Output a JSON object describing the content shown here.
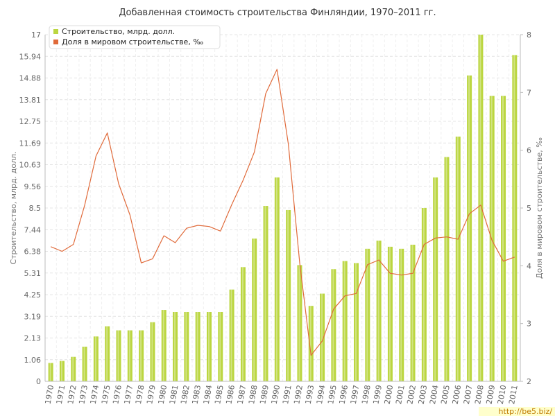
{
  "chart_data": {
    "type": "bar+line",
    "title": "Добавленная стоимость строительства Финляндии, 1970–2011 гг.",
    "ylabel_left": "Строительство, млрд. долл.",
    "ylabel_right": "Доля в мировом строительстве, ‰",
    "categories": [
      "1970",
      "1971",
      "1972",
      "1973",
      "1974",
      "1975",
      "1976",
      "1977",
      "1978",
      "1979",
      "1980",
      "1981",
      "1982",
      "1983",
      "1984",
      "1985",
      "1986",
      "1987",
      "1988",
      "1989",
      "1990",
      "1991",
      "1992",
      "1993",
      "1994",
      "1995",
      "1996",
      "1997",
      "1998",
      "1999",
      "2000",
      "2001",
      "2002",
      "2003",
      "2004",
      "2005",
      "2006",
      "2007",
      "2008",
      "2009",
      "2010",
      "2011"
    ],
    "left_axis": {
      "ylim": [
        0,
        17
      ],
      "ticks": [
        "0",
        "1.06",
        "2.13",
        "3.19",
        "4.25",
        "5.31",
        "6.38",
        "7.44",
        "8.5",
        "9.56",
        "10.63",
        "11.69",
        "12.75",
        "13.81",
        "14.88",
        "15.94",
        "17"
      ]
    },
    "right_axis": {
      "ylim": [
        2,
        8
      ],
      "ticks": [
        "2",
        "3",
        "4",
        "5",
        "6",
        "7",
        "8"
      ]
    },
    "series": [
      {
        "name": "Строительство, млрд. долл.",
        "type": "bar",
        "axis": "left",
        "color": "#bbd640",
        "values": [
          0.9,
          1.0,
          1.2,
          1.7,
          2.2,
          2.7,
          2.5,
          2.5,
          2.5,
          2.9,
          3.5,
          3.4,
          3.4,
          3.4,
          3.4,
          3.4,
          4.5,
          5.6,
          7.0,
          8.6,
          10.0,
          8.4,
          5.7,
          3.7,
          4.3,
          5.5,
          5.9,
          5.8,
          6.5,
          6.9,
          6.6,
          6.5,
          6.7,
          8.5,
          10.0,
          11.0,
          12.0,
          15.0,
          17.0,
          14.0,
          14.0,
          16.0
        ]
      },
      {
        "name": "Доля в мировом строительстве, ‰",
        "type": "line",
        "axis": "right",
        "color": "#e06a3a",
        "values": [
          4.33,
          4.25,
          4.37,
          5.05,
          5.9,
          6.3,
          5.42,
          4.88,
          4.05,
          4.12,
          4.52,
          4.4,
          4.65,
          4.7,
          4.68,
          4.6,
          5.06,
          5.48,
          5.97,
          6.98,
          7.4,
          6.1,
          4.05,
          2.45,
          2.7,
          3.25,
          3.48,
          3.52,
          4.02,
          4.1,
          3.87,
          3.84,
          3.87,
          4.37,
          4.48,
          4.5,
          4.46,
          4.9,
          5.05,
          4.44,
          4.08,
          4.15
        ]
      }
    ],
    "grid": true,
    "legend_position": "top-left"
  },
  "watermark": "http://be5.biz/"
}
